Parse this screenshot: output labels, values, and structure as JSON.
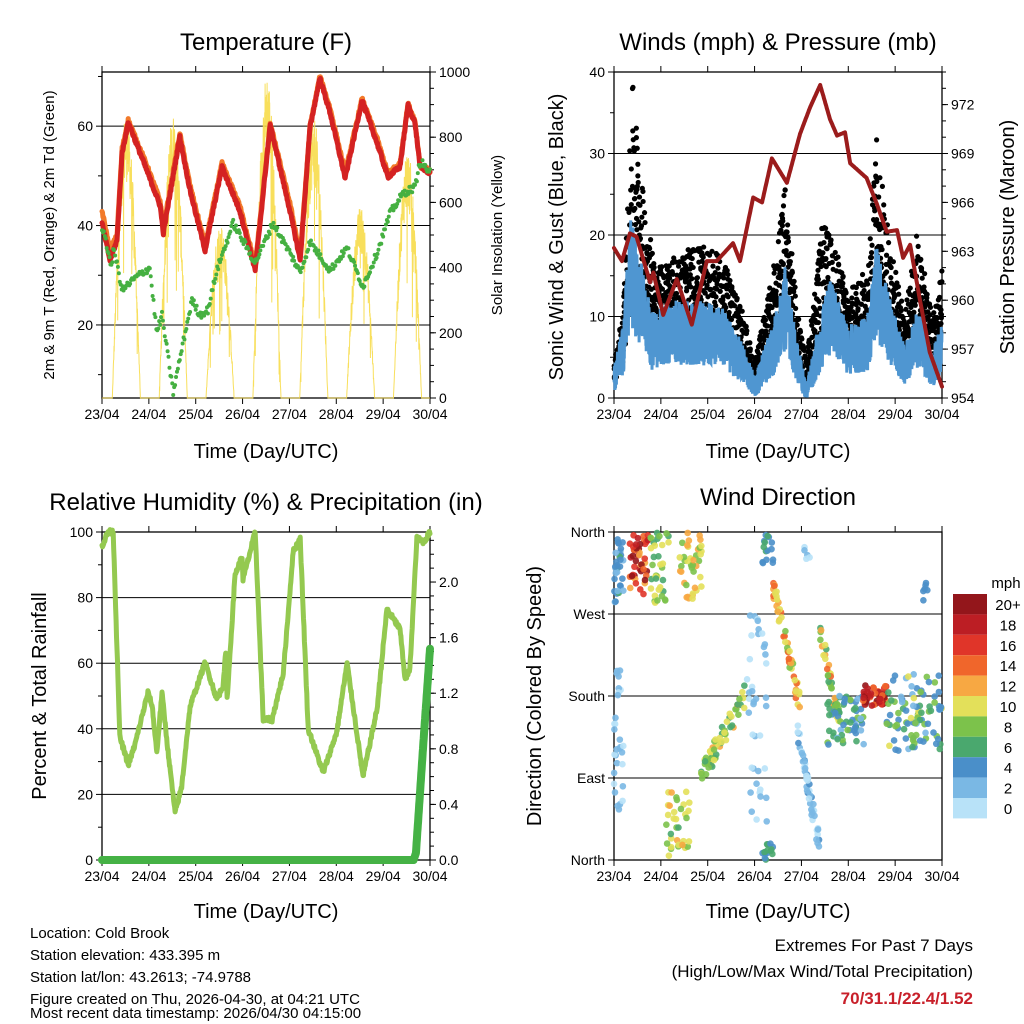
{
  "footer": {
    "location": "Location: Cold Brook",
    "elevation": "Station elevation: 433.395 m",
    "latlon": "Station lat/lon: 43.2613; -74.9788",
    "created": "Figure created on Thu, 2026-04-30, at 04:21 UTC",
    "timestamp": "Most recent data timestamp: 2026/04/30 04:15:00",
    "extremes_title": "Extremes For Past 7 Days",
    "extremes_sub": "(High/Low/Max Wind/Total Precipitation)",
    "extremes_values": "70/31.1/22.4/1.52",
    "extremes_color": "#c8202a"
  },
  "chart_data": [
    {
      "type": "line",
      "title": "Temperature (F)",
      "xlabel": "Time (Day/UTC)",
      "ylabel": "2m & 9m T (Red, Orange) & 2m Td (Green)",
      "ylabel_right": "Solar Insolation (Yellow)",
      "x_ticks": [
        "23/04",
        "24/04",
        "25/04",
        "26/04",
        "27/04",
        "28/04",
        "29/04",
        "30/04"
      ],
      "ylim": [
        5.3,
        70.9
      ],
      "y_ticks": [
        "20",
        "40",
        "60"
      ],
      "ylim_right": [
        0,
        1000
      ],
      "y_ticks_right": [
        "0",
        "200",
        "400",
        "600",
        "800",
        "1000"
      ],
      "grid": "horizontal",
      "series": [
        {
          "name": "2m T",
          "color": "#d42222",
          "x": [
            0,
            0.17,
            0.32,
            0.43,
            0.56,
            0.96,
            1.24,
            1.31,
            1.66,
            1.88,
            2.2,
            2.56,
            2.94,
            3.27,
            3.59,
            4.01,
            4.23,
            4.44,
            4.65,
            4.87,
            5.19,
            5.55,
            5.87,
            6.1,
            6.36,
            6.53,
            6.68,
            6.79,
            7.0
          ],
          "values": [
            40.5,
            33,
            37,
            54.6,
            60.8,
            51,
            44,
            38.5,
            57.8,
            47,
            35,
            51.8,
            43,
            31,
            60.2,
            43,
            33,
            59.8,
            69.6,
            62.6,
            49.5,
            65.2,
            56.6,
            49.8,
            51.8,
            64.2,
            60.6,
            51.8,
            50.6
          ]
        },
        {
          "name": "9m T",
          "color": "#f27a2a",
          "x": [
            0,
            0.17,
            0.32,
            0.43,
            0.56,
            0.96,
            1.24,
            1.31,
            1.66,
            1.88,
            2.2,
            2.56,
            2.94,
            3.27,
            3.59,
            4.01,
            4.23,
            4.44,
            4.65,
            4.87,
            5.19,
            5.55,
            5.87,
            6.1,
            6.36,
            6.53,
            6.68,
            6.79,
            7.0
          ],
          "values": [
            43,
            35,
            38,
            55.5,
            61.2,
            52,
            45,
            39.5,
            58.5,
            48,
            36,
            52.5,
            44,
            32,
            60.5,
            44.5,
            34,
            60,
            70,
            63.5,
            50.5,
            65.5,
            57.5,
            50.5,
            52.5,
            64.5,
            61,
            52,
            51
          ]
        },
        {
          "name": "2m Td",
          "color": "#45b041",
          "x": [
            0,
            0.21,
            0.25,
            0.43,
            0.74,
            1.02,
            1.17,
            1.28,
            1.52,
            1.7,
            1.92,
            2.09,
            2.26,
            2.45,
            2.8,
            3.27,
            3.65,
            4.01,
            4.23,
            4.44,
            4.87,
            5.23,
            5.57,
            5.87,
            6.15,
            6.43,
            6.68,
            6.79,
            7.0
          ],
          "values": [
            39.7,
            31.7,
            35.5,
            27,
            29.7,
            31.5,
            18.4,
            22,
            6.4,
            15,
            25,
            22,
            23,
            31,
            40.5,
            32.5,
            40.5,
            34.5,
            30.5,
            36.7,
            31,
            35.5,
            27.7,
            34.5,
            42.5,
            46.5,
            47.7,
            53,
            50.6
          ]
        },
        {
          "name": "Solar Insolation",
          "color": "#f7dc4a",
          "axis": "right",
          "daily_peak": [
            882,
            873,
            540,
            1000,
            867,
            590,
            765
          ]
        }
      ]
    },
    {
      "type": "scatter",
      "title": "Winds (mph) & Pressure (mb)",
      "xlabel": "Time (Day/UTC)",
      "ylabel": "Sonic Wind & Gust (Blue, Black)",
      "ylabel_right": "Station Pressure (Maroon)",
      "x_ticks": [
        "23/04",
        "24/04",
        "25/04",
        "26/04",
        "27/04",
        "28/04",
        "29/04",
        "30/04"
      ],
      "ylim": [
        0,
        40
      ],
      "y_ticks": [
        "0",
        "10",
        "20",
        "30",
        "40"
      ],
      "ylim_right": [
        954,
        974
      ],
      "y_ticks_right": [
        "954",
        "957",
        "960",
        "963",
        "966",
        "969",
        "972"
      ],
      "grid": "horizontal",
      "series": [
        {
          "name": "Sonic Wind",
          "color": "#4f96d1",
          "x": [
            0,
            0.2,
            0.35,
            0.5,
            0.8,
            1.3,
            1.8,
            2.3,
            2.7,
            3.0,
            3.4,
            3.65,
            3.9,
            4.1,
            4.4,
            4.6,
            5.0,
            5.4,
            5.6,
            5.9,
            6.2,
            6.5,
            6.8,
            7.0
          ],
          "values": [
            2.2,
            6,
            16,
            13,
            7,
            8,
            8,
            7.5,
            4.6,
            1.4,
            6,
            11,
            4.6,
            0.8,
            6.5,
            10,
            6,
            6.5,
            13,
            8,
            4,
            7.5,
            3.5,
            6.5
          ]
        },
        {
          "name": "Gust",
          "color": "#000000",
          "x": [
            0,
            0.2,
            0.4,
            0.6,
            0.9,
            1.3,
            1.8,
            2.3,
            2.7,
            3.0,
            3.4,
            3.65,
            3.9,
            4.1,
            4.45,
            4.7,
            5.0,
            5.4,
            5.6,
            5.9,
            6.2,
            6.45,
            6.8,
            7.0
          ],
          "values": [
            3,
            8,
            27,
            18,
            11,
            12,
            13,
            12,
            8,
            3,
            11,
            18,
            8,
            3,
            15,
            13,
            9,
            11,
            22,
            13,
            7,
            14,
            7,
            11
          ]
        },
        {
          "name": "Station Pressure",
          "color": "#9b1c1c",
          "axis": "right",
          "x": [
            0,
            0.17,
            0.34,
            0.48,
            0.77,
            0.84,
            1.05,
            1.34,
            1.66,
            1.98,
            2.19,
            2.54,
            2.69,
            2.97,
            3.16,
            3.37,
            3.69,
            3.97,
            4.18,
            4.4,
            4.61,
            4.76,
            4.93,
            5.04,
            5.39,
            5.61,
            5.82,
            6.04,
            6.17,
            6.32,
            6.53,
            6.74,
            7.0
          ],
          "values": [
            963.2,
            962.4,
            964.1,
            963.9,
            961.1,
            961.7,
            959.1,
            961.3,
            958.5,
            962.4,
            962.4,
            963.5,
            962.4,
            966.3,
            966,
            968.7,
            967.2,
            970.2,
            971.8,
            973.2,
            971.1,
            970.1,
            970.3,
            968.4,
            967.5,
            965.9,
            964.2,
            964.3,
            962.6,
            963.4,
            960,
            956.8,
            954.7
          ]
        }
      ]
    },
    {
      "type": "line",
      "title": "Relative Humidity (%) & Precipitation (in)",
      "xlabel": "Time (Day/UTC)",
      "ylabel": "Percent & Total Rainfall",
      "x_ticks": [
        "23/04",
        "24/04",
        "25/04",
        "26/04",
        "27/04",
        "28/04",
        "29/04",
        "30/04"
      ],
      "ylim": [
        0,
        100
      ],
      "y_ticks": [
        "0",
        "20",
        "40",
        "60",
        "80",
        "100"
      ],
      "ylim_right": [
        0,
        2.36
      ],
      "y_ticks_right": [
        "0.0",
        "0.4",
        "0.8",
        "1.2",
        "1.6",
        "2.0"
      ],
      "grid": "horizontal",
      "series": [
        {
          "name": "Relative Humidity",
          "color": "#94c950",
          "x": [
            0,
            0.13,
            0.24,
            0.38,
            0.56,
            0.7,
            0.98,
            1.07,
            1.17,
            1.28,
            1.41,
            1.56,
            1.7,
            1.88,
            2.2,
            2.45,
            2.58,
            2.64,
            2.67,
            2.84,
            2.99,
            3.01,
            3.27,
            3.44,
            3.63,
            3.87,
            4.08,
            4.23,
            4.4,
            4.72,
            5.01,
            5.23,
            5.57,
            5.87,
            6.08,
            6.36,
            6.47,
            6.57,
            6.72,
            6.87,
            7.0
          ],
          "values": [
            95.7,
            100,
            100,
            37.6,
            29,
            35,
            51,
            47,
            32.7,
            51,
            33,
            14.4,
            22.3,
            46.8,
            60.2,
            49,
            53,
            63,
            49,
            87,
            92.5,
            85.5,
            100,
            42.8,
            42.8,
            57,
            94,
            98,
            40,
            26.6,
            39,
            60,
            25.4,
            46,
            76.5,
            70.4,
            55,
            58,
            98,
            97,
            100
          ]
        },
        {
          "name": "Total Precipitation",
          "color": "#45b245",
          "axis": "right",
          "x": [
            0,
            6.65,
            6.7,
            6.85,
            7.0
          ],
          "values": [
            0,
            0,
            0.05,
            0.8,
            1.52
          ]
        }
      ]
    },
    {
      "type": "scatter",
      "title": "Wind Direction",
      "xlabel": "Time (Day/UTC)",
      "ylabel": "Direction (Colored By Speed)",
      "x_ticks": [
        "23/04",
        "24/04",
        "25/04",
        "26/04",
        "27/04",
        "28/04",
        "29/04",
        "30/04"
      ],
      "y_ticks": [
        "North",
        "East",
        "South",
        "West",
        "North"
      ],
      "ylim": [
        0,
        360
      ],
      "grid": "horizontal",
      "legend": {
        "title": "mph",
        "position": "right",
        "labels": [
          "20+",
          "18",
          "16",
          "14",
          "12",
          "10",
          "8",
          "6",
          "4",
          "2",
          "0"
        ],
        "colors": [
          "#93161b",
          "#bc1e24",
          "#e03529",
          "#f0662b",
          "#f7a843",
          "#e3e05a",
          "#7cc24b",
          "#4aa86e",
          "#4a8fc9",
          "#7ab8e4",
          "#b8e2f8"
        ]
      },
      "clusters": [
        {
          "day": [
            0,
            0.2
          ],
          "deg": [
            359,
            282
          ],
          "speed": [
            2,
            6
          ],
          "n": 30
        },
        {
          "day": [
            0.34,
            0.77
          ],
          "deg": [
            357,
            289
          ],
          "speed": [
            12,
            21
          ],
          "n": 45
        },
        {
          "day": [
            0.77,
            1.2
          ],
          "deg": [
            359,
            282
          ],
          "speed": [
            5,
            11
          ],
          "n": 35
        },
        {
          "day": [
            1.4,
            1.88
          ],
          "deg": [
            359,
            282
          ],
          "speed": [
            7,
            13
          ],
          "n": 40
        },
        {
          "day": [
            0,
            0.2
          ],
          "deg": [
            208,
            55
          ],
          "speed": [
            0,
            3
          ],
          "n": 30
        },
        {
          "day": [
            1.05,
            1.62
          ],
          "deg": [
            77,
            4
          ],
          "speed": [
            6,
            12
          ],
          "n": 35
        },
        {
          "day": [
            1.84,
            2.84
          ],
          "deg": [
            90,
            185
          ],
          "speed": [
            6,
            12
          ],
          "n": 60,
          "trend": true
        },
        {
          "day": [
            2.84,
            3.26
          ],
          "deg": [
            270,
            40
          ],
          "speed": [
            0,
            3
          ],
          "n": 40
        },
        {
          "day": [
            3.16,
            3.4
          ],
          "deg": [
            357,
            325
          ],
          "speed": [
            3,
            6
          ],
          "n": 15
        },
        {
          "day": [
            3.16,
            3.4
          ],
          "deg": [
            20,
            0
          ],
          "speed": [
            3,
            6
          ],
          "n": 15
        },
        {
          "day": [
            3.4,
            3.97
          ],
          "deg": [
            300,
            170
          ],
          "speed": [
            8,
            15
          ],
          "n": 50,
          "trend": true
        },
        {
          "day": [
            3.9,
            4.4
          ],
          "deg": [
            150,
            10
          ],
          "speed": [
            0,
            4
          ],
          "n": 50,
          "trend": true
        },
        {
          "day": [
            4.0,
            4.2
          ],
          "deg": [
            345,
            330
          ],
          "speed": [
            0,
            2
          ],
          "n": 5
        },
        {
          "day": [
            4.4,
            4.82
          ],
          "deg": [
            250,
            150
          ],
          "speed": [
            6,
            14
          ],
          "n": 40,
          "trend": true
        },
        {
          "day": [
            4.55,
            5.4
          ],
          "deg": [
            180,
            125
          ],
          "speed": [
            2,
            8
          ],
          "n": 60
        },
        {
          "day": [
            5.3,
            5.82
          ],
          "deg": [
            192,
            168
          ],
          "speed": [
            13,
            21
          ],
          "n": 45
        },
        {
          "day": [
            5.82,
            7.0
          ],
          "deg": [
            205,
            120
          ],
          "speed": [
            2,
            10
          ],
          "n": 90
        },
        {
          "day": [
            6.6,
            6.7
          ],
          "deg": [
            305,
            285
          ],
          "speed": [
            3,
            5
          ],
          "n": 6
        }
      ]
    }
  ]
}
